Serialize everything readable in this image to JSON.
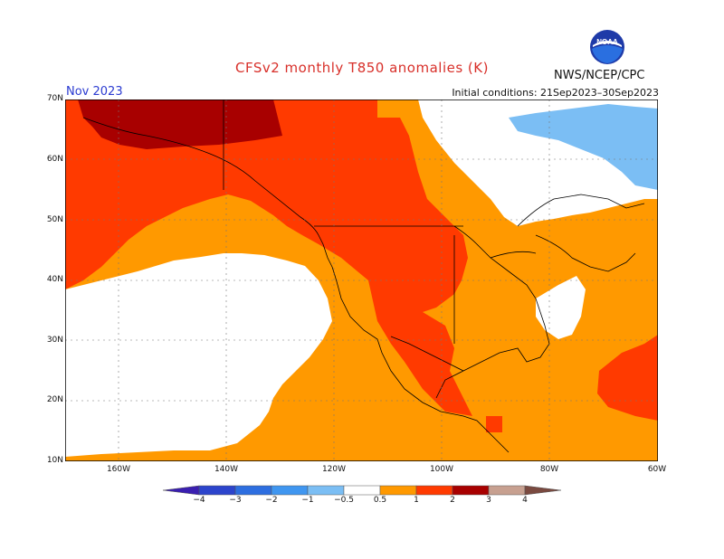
{
  "title": "CFSv2 monthly T850 anomalies (K)",
  "agency": "NWS/NCEP/CPC",
  "logo_text": "NOAA",
  "month": "Nov 2023",
  "initial_conditions": "Initial conditions: 21Sep2023–30Sep2023",
  "map": {
    "lat_labels": [
      "70N",
      "60N",
      "50N",
      "40N",
      "30N",
      "20N",
      "10N"
    ],
    "lon_labels": [
      "160W",
      "140W",
      "120W",
      "100W",
      "80W",
      "60W"
    ]
  },
  "colorbar": {
    "labels": [
      "−4",
      "−3",
      "−2",
      "−1",
      "−0.5",
      "0.5",
      "1",
      "2",
      "3",
      "4"
    ],
    "colors": [
      "#3a1fb0",
      "#2c44cc",
      "#2d6ee0",
      "#3f96f0",
      "#7bbef4",
      "#ffffff",
      "#ff9900",
      "#ff3a00",
      "#a80000",
      "#c7a090",
      "#7a4a40"
    ]
  }
}
